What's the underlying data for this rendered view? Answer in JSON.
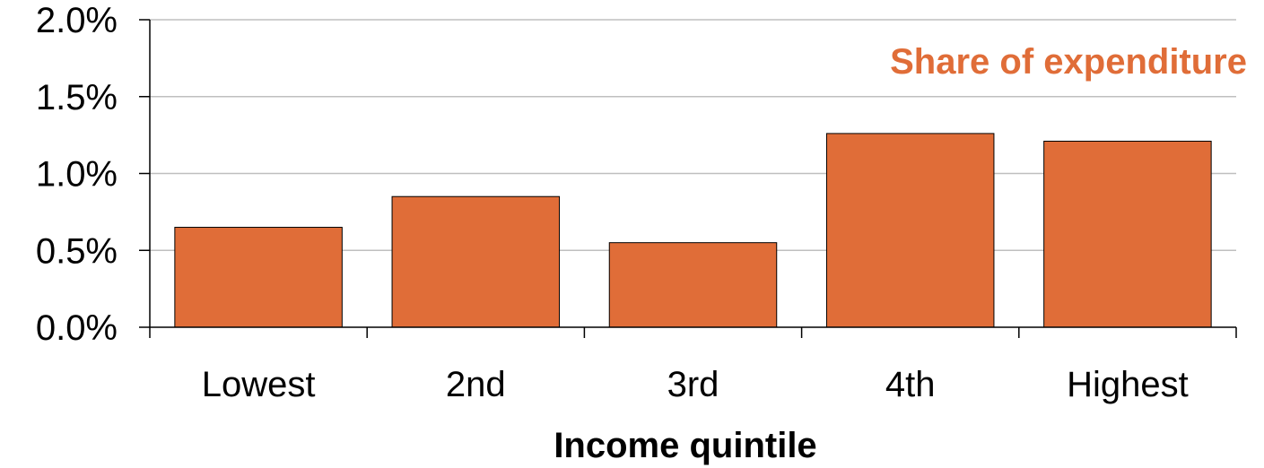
{
  "chart_data": {
    "type": "bar",
    "categories": [
      "Lowest",
      "2nd",
      "3rd",
      "4th",
      "Highest"
    ],
    "series": [
      {
        "name": "Share of expenditure",
        "values": [
          0.65,
          0.85,
          0.55,
          1.26,
          1.21
        ],
        "color": "#e06d38"
      }
    ],
    "xlabel": "Income quintile",
    "ylabel": "",
    "ylim": [
      0,
      2.0
    ],
    "yticks": [
      0.0,
      0.5,
      1.0,
      1.5,
      2.0
    ],
    "ytick_labels": [
      "0.0%",
      "0.5%",
      "1.0%",
      "1.5%",
      "2.0%"
    ],
    "grid": true,
    "legend_placement": "top-right"
  }
}
